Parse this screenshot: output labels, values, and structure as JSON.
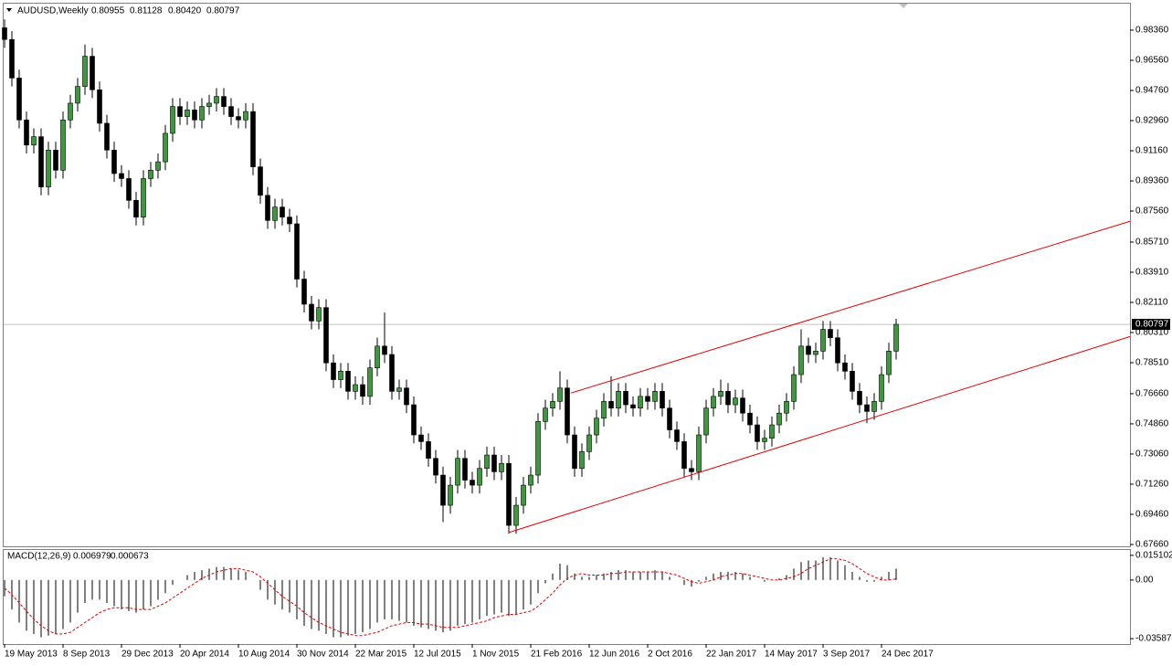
{
  "header": {
    "symbol": "AUDUSD,Weekly",
    "ohlc": [
      0.80955,
      0.81128,
      {
        "value": 0.8042,
        "label": "0.80420"
      },
      0.80797
    ]
  },
  "chart_data": [
    {
      "type": "candlestick",
      "color_up": "#3c9a3c",
      "color_down": "#000000",
      "wick_color": "#000000",
      "categories": [
        "19 May 2013",
        null,
        null,
        null,
        null,
        null,
        null,
        null,
        "8 Sep 2013",
        null,
        null,
        null,
        null,
        null,
        null,
        null,
        "29 Dec 2013",
        null,
        null,
        null,
        null,
        null,
        null,
        null,
        "20 Apr 2014",
        null,
        null,
        null,
        null,
        null,
        null,
        null,
        "10 Aug 2014",
        null,
        null,
        null,
        null,
        null,
        null,
        null,
        "30 Nov 2014",
        null,
        null,
        null,
        null,
        null,
        null,
        null,
        "22 Mar 2015",
        null,
        null,
        null,
        null,
        null,
        null,
        null,
        "12 Jul 2015",
        null,
        null,
        null,
        null,
        null,
        null,
        null,
        "1 Nov 2015",
        null,
        null,
        null,
        null,
        null,
        null,
        null,
        "21 Feb 2016",
        null,
        null,
        null,
        null,
        null,
        null,
        null,
        "12 Jun 2016",
        null,
        null,
        null,
        null,
        null,
        null,
        null,
        "2 Oct 2016",
        null,
        null,
        null,
        null,
        null,
        null,
        null,
        "22 Jan 2017",
        null,
        null,
        null,
        null,
        null,
        null,
        null,
        "14 May 2017",
        null,
        null,
        null,
        null,
        null,
        null,
        null,
        "3 Sep 2017",
        null,
        null,
        null,
        null,
        null,
        null,
        null,
        "24 Dec 2017",
        null,
        null
      ],
      "open": [
        0.985,
        0.978,
        0.955,
        0.93,
        0.915,
        0.92,
        0.89,
        0.912,
        0.9,
        0.93,
        0.94,
        0.95,
        0.968,
        0.948,
        0.928,
        0.912,
        0.898,
        0.895,
        0.882,
        0.872,
        0.895,
        0.9,
        0.905,
        0.922,
        0.938,
        0.932,
        0.936,
        0.93,
        0.938,
        0.94,
        0.944,
        0.938,
        0.932,
        0.93,
        0.935,
        0.902,
        0.885,
        0.87,
        0.878,
        0.872,
        0.868,
        0.835,
        0.82,
        0.81,
        0.818,
        0.785,
        0.775,
        0.78,
        0.768,
        0.772,
        0.765,
        0.782,
        0.795,
        0.79,
        0.768,
        0.77,
        0.76,
        0.742,
        0.738,
        0.728,
        0.718,
        0.7,
        0.712,
        0.728,
        0.715,
        0.712,
        0.722,
        0.73,
        0.72,
        0.725,
        0.688,
        0.7,
        0.712,
        0.718,
        0.75,
        0.758,
        0.762,
        0.77,
        0.742,
        0.722,
        0.732,
        0.742,
        0.752,
        0.762,
        0.758,
        0.768,
        0.76,
        0.758,
        0.765,
        0.762,
        0.768,
        0.758,
        0.745,
        0.738,
        0.722,
        0.72,
        0.742,
        0.758,
        0.765,
        0.768,
        0.76,
        0.764,
        0.755,
        0.748,
        0.738,
        0.74,
        0.748,
        0.755,
        0.762,
        0.778,
        0.795,
        0.79,
        0.792,
        0.805,
        0.8,
        0.785,
        0.78,
        0.768,
        0.76,
        0.756,
        0.762,
        0.778,
        0.792
      ],
      "high": [
        0.99,
        0.983,
        0.96,
        0.935,
        0.925,
        0.925,
        0.917,
        0.917,
        0.935,
        0.945,
        0.955,
        0.975,
        0.973,
        0.953,
        0.933,
        0.917,
        0.903,
        0.9,
        0.887,
        0.9,
        0.905,
        0.91,
        0.927,
        0.943,
        0.943,
        0.941,
        0.941,
        0.943,
        0.945,
        0.949,
        0.949,
        0.943,
        0.937,
        0.94,
        0.94,
        0.907,
        0.89,
        0.883,
        0.883,
        0.877,
        0.873,
        0.84,
        0.825,
        0.823,
        0.823,
        0.79,
        0.785,
        0.785,
        0.777,
        0.777,
        0.787,
        0.8,
        0.815,
        0.795,
        0.775,
        0.775,
        0.765,
        0.747,
        0.743,
        0.733,
        0.723,
        0.717,
        0.733,
        0.733,
        0.72,
        0.727,
        0.735,
        0.735,
        0.73,
        0.73,
        0.705,
        0.717,
        0.723,
        0.755,
        0.763,
        0.767,
        0.78,
        0.775,
        0.747,
        0.737,
        0.747,
        0.757,
        0.767,
        0.777,
        0.773,
        0.773,
        0.765,
        0.77,
        0.77,
        0.773,
        0.773,
        0.763,
        0.75,
        0.743,
        0.727,
        0.747,
        0.763,
        0.77,
        0.775,
        0.773,
        0.769,
        0.769,
        0.76,
        0.753,
        0.745,
        0.753,
        0.76,
        0.767,
        0.783,
        0.805,
        0.8,
        0.797,
        0.81,
        0.81,
        0.805,
        0.79,
        0.785,
        0.773,
        0.765,
        0.767,
        0.783,
        0.797,
        0.81128
      ],
      "low": [
        0.973,
        0.95,
        0.925,
        0.91,
        0.91,
        0.885,
        0.885,
        0.895,
        0.895,
        0.925,
        0.935,
        0.945,
        0.943,
        0.923,
        0.907,
        0.893,
        0.89,
        0.877,
        0.867,
        0.867,
        0.89,
        0.895,
        0.9,
        0.917,
        0.927,
        0.927,
        0.925,
        0.925,
        0.933,
        0.935,
        0.933,
        0.927,
        0.925,
        0.925,
        0.897,
        0.88,
        0.865,
        0.865,
        0.867,
        0.863,
        0.83,
        0.815,
        0.805,
        0.805,
        0.78,
        0.77,
        0.77,
        0.763,
        0.763,
        0.76,
        0.76,
        0.777,
        0.785,
        0.763,
        0.763,
        0.755,
        0.737,
        0.733,
        0.723,
        0.713,
        0.69,
        0.695,
        0.707,
        0.71,
        0.707,
        0.707,
        0.717,
        0.715,
        0.715,
        0.683,
        0.683,
        0.695,
        0.707,
        0.713,
        0.745,
        0.753,
        0.757,
        0.737,
        0.717,
        0.717,
        0.727,
        0.737,
        0.747,
        0.753,
        0.753,
        0.755,
        0.753,
        0.753,
        0.757,
        0.757,
        0.753,
        0.74,
        0.733,
        0.717,
        0.715,
        0.715,
        0.737,
        0.753,
        0.76,
        0.755,
        0.755,
        0.75,
        0.743,
        0.733,
        0.733,
        0.735,
        0.743,
        0.75,
        0.757,
        0.773,
        0.785,
        0.785,
        0.787,
        0.795,
        0.78,
        0.775,
        0.763,
        0.755,
        0.749,
        0.751,
        0.757,
        0.773,
        0.787
      ],
      "close": [
        0.978,
        0.955,
        0.93,
        0.915,
        0.92,
        0.89,
        0.912,
        0.9,
        0.93,
        0.94,
        0.95,
        0.968,
        0.948,
        0.928,
        0.912,
        0.898,
        0.895,
        0.882,
        0.872,
        0.895,
        0.9,
        0.905,
        0.922,
        0.938,
        0.932,
        0.936,
        0.93,
        0.938,
        0.94,
        0.944,
        0.938,
        0.932,
        0.93,
        0.935,
        0.902,
        0.885,
        0.87,
        0.878,
        0.872,
        0.868,
        0.835,
        0.82,
        0.81,
        0.818,
        0.785,
        0.775,
        0.78,
        0.768,
        0.772,
        0.765,
        0.782,
        0.795,
        0.79,
        0.768,
        0.77,
        0.76,
        0.742,
        0.738,
        0.728,
        0.718,
        0.7,
        0.712,
        0.728,
        0.715,
        0.712,
        0.722,
        0.73,
        0.72,
        0.725,
        0.688,
        0.7,
        0.712,
        0.718,
        0.75,
        0.758,
        0.762,
        0.77,
        0.742,
        0.722,
        0.732,
        0.742,
        0.752,
        0.762,
        0.758,
        0.768,
        0.76,
        0.758,
        0.765,
        0.762,
        0.768,
        0.758,
        0.745,
        0.738,
        0.722,
        0.72,
        0.742,
        0.758,
        0.765,
        0.768,
        0.76,
        0.764,
        0.755,
        0.748,
        0.738,
        0.74,
        0.748,
        0.755,
        0.762,
        0.778,
        0.795,
        0.79,
        0.792,
        0.805,
        0.8,
        0.785,
        0.78,
        0.768,
        0.76,
        0.756,
        0.762,
        0.778,
        0.792,
        0.80797
      ],
      "ylim": [
        0.6755,
        0.9994
      ],
      "yticks": [
        {
          "value": 0.9836,
          "label": "0.98360"
        },
        {
          "value": 0.9656,
          "label": "0.96560"
        },
        {
          "value": 0.9476,
          "label": "0.94760"
        },
        {
          "value": 0.9296,
          "label": "0.92960"
        },
        {
          "value": 0.9116,
          "label": "0.91160"
        },
        {
          "value": 0.8936,
          "label": "0.89360"
        },
        {
          "value": 0.8756,
          "label": "0.87560"
        },
        {
          "value": 0.8571,
          "label": "0.85710"
        },
        {
          "value": 0.8391,
          "label": "0.83910"
        },
        {
          "value": 0.8211,
          "label": "0.82110"
        },
        {
          "value": 0.8031,
          "label": "0.80310"
        },
        {
          "value": 0.7851,
          "label": "0.78510"
        },
        {
          "value": 0.7666,
          "label": "0.76660"
        },
        {
          "value": 0.7486,
          "label": "0.74860"
        },
        {
          "value": 0.7306,
          "label": "0.73060"
        },
        {
          "value": 0.7126,
          "label": "0.71260"
        },
        {
          "value": 0.6946,
          "label": "0.69460"
        },
        {
          "value": 0.6766,
          "label": "0.67660"
        }
      ],
      "trendlines": [
        {
          "color": "#e00000",
          "x": [
            77.5,
            154
          ],
          "y": [
            0.767,
            0.8695
          ]
        },
        {
          "color": "#e00000",
          "x": [
            69.1,
            154
          ],
          "y": [
            0.6839,
            0.8007
          ]
        }
      ],
      "price_line_color": "#c0c0c0"
    },
    {
      "type": "macd",
      "title": "MACD(12,26,9)",
      "color": "#000000",
      "values": [
        -0.01,
        -0.018,
        -0.026,
        -0.031,
        -0.033,
        -0.035,
        -0.034,
        -0.033,
        -0.03,
        -0.026,
        -0.02,
        -0.014,
        -0.012,
        -0.012,
        -0.014,
        -0.016,
        -0.018,
        -0.019,
        -0.02,
        -0.018,
        -0.016,
        -0.012,
        -0.008,
        -0.003,
        0.0,
        0.003,
        0.005,
        0.006,
        0.007,
        0.008,
        0.008,
        0.007,
        0.006,
        0.005,
        0.0,
        -0.006,
        -0.012,
        -0.015,
        -0.018,
        -0.02,
        -0.024,
        -0.028,
        -0.03,
        -0.031,
        -0.033,
        -0.035,
        -0.035,
        -0.034,
        -0.033,
        -0.032,
        -0.03,
        -0.026,
        -0.024,
        -0.024,
        -0.025,
        -0.026,
        -0.028,
        -0.029,
        -0.03,
        -0.031,
        -0.032,
        -0.031,
        -0.028,
        -0.027,
        -0.026,
        -0.024,
        -0.022,
        -0.021,
        -0.02,
        -0.022,
        -0.021,
        -0.018,
        -0.015,
        -0.008,
        -0.002,
        0.004,
        0.01,
        0.009,
        0.004,
        0.002,
        0.002,
        0.003,
        0.004,
        0.005,
        0.006,
        0.006,
        0.005,
        0.005,
        0.005,
        0.006,
        0.005,
        0.002,
        0.0,
        -0.003,
        -0.004,
        -0.001,
        0.002,
        0.004,
        0.005,
        0.005,
        0.005,
        0.004,
        0.002,
        0.0,
        -0.001,
        0.0,
        0.001,
        0.003,
        0.007,
        0.011,
        0.012,
        0.012,
        0.014,
        0.014,
        0.012,
        0.009,
        0.005,
        0.002,
        -0.001,
        -0.001,
        0.002,
        0.005,
        0.006979
      ],
      "signal": {
        "color": "#e00000",
        "values": [
          -0.005,
          -0.009,
          -0.014,
          -0.019,
          -0.024,
          -0.028,
          -0.031,
          -0.033,
          -0.033,
          -0.032,
          -0.029,
          -0.026,
          -0.023,
          -0.02,
          -0.018,
          -0.017,
          -0.017,
          -0.017,
          -0.018,
          -0.018,
          -0.018,
          -0.016,
          -0.014,
          -0.011,
          -0.008,
          -0.005,
          -0.002,
          0.001,
          0.003,
          0.005,
          0.006,
          0.007,
          0.007,
          0.006,
          0.005,
          0.002,
          -0.002,
          -0.006,
          -0.01,
          -0.013,
          -0.016,
          -0.02,
          -0.023,
          -0.026,
          -0.028,
          -0.03,
          -0.032,
          -0.033,
          -0.034,
          -0.034,
          -0.033,
          -0.032,
          -0.03,
          -0.028,
          -0.027,
          -0.026,
          -0.026,
          -0.027,
          -0.027,
          -0.028,
          -0.029,
          -0.029,
          -0.029,
          -0.028,
          -0.027,
          -0.026,
          -0.025,
          -0.023,
          -0.022,
          -0.021,
          -0.021,
          -0.02,
          -0.019,
          -0.016,
          -0.012,
          -0.008,
          -0.003,
          0.001,
          0.003,
          0.004,
          0.003,
          0.003,
          0.003,
          0.004,
          0.004,
          0.005,
          0.005,
          0.005,
          0.005,
          0.005,
          0.005,
          0.004,
          0.003,
          0.001,
          -0.001,
          -0.002,
          -0.001,
          0.0,
          0.002,
          0.003,
          0.004,
          0.004,
          0.003,
          0.002,
          0.001,
          0.0,
          0.0,
          0.001,
          0.002,
          0.004,
          0.007,
          0.009,
          0.011,
          0.013,
          0.013,
          0.012,
          0.01,
          0.007,
          0.004,
          0.002,
          0.0,
          0.0,
          0.000673
        ]
      },
      "ylim": [
        -0.0392,
        0.0184
      ],
      "yticks": [
        0.015102,
        {
          "value": 0,
          "label": "0.00"
        },
        -0.035874
      ]
    }
  ]
}
